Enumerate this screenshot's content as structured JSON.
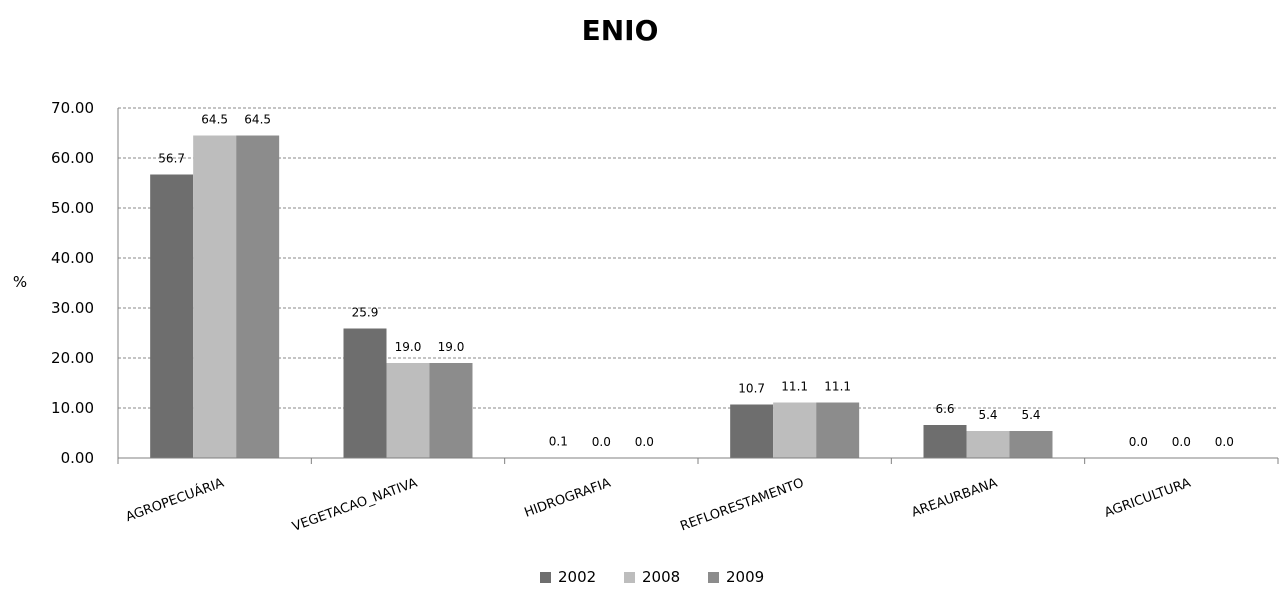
{
  "chart_data": {
    "type": "bar",
    "title": "ENIO",
    "xlabel": "",
    "ylabel": "%",
    "ylim": [
      0,
      70
    ],
    "yticks": [
      "0.00",
      "10.00",
      "20.00",
      "30.00",
      "40.00",
      "50.00",
      "60.00",
      "70.00"
    ],
    "grid": true,
    "legend_position": "bottom",
    "categories": [
      "AGROPECUÁRIA",
      "VEGETACAO_NATIVA",
      "HIDROGRAFIA",
      "REFLORESTAMENTO",
      "AREAURBANA",
      "AGRICULTURA"
    ],
    "series": [
      {
        "name": "2002",
        "color": "#6e6e6e",
        "values": [
          56.7,
          25.9,
          0.1,
          10.7,
          6.6,
          0.0
        ],
        "labels": [
          "56.7",
          "25.9",
          "0.1",
          "10.7",
          "6.6",
          "0.0"
        ]
      },
      {
        "name": "2008",
        "color": "#bdbdbd",
        "values": [
          64.5,
          19.0,
          0.0,
          11.1,
          5.4,
          0.0
        ],
        "labels": [
          "64.5",
          "19.0",
          "0.0",
          "11.1",
          "5.4",
          "0.0"
        ]
      },
      {
        "name": "2009",
        "color": "#8c8c8c",
        "values": [
          64.5,
          19.0,
          0.0,
          11.1,
          5.4,
          0.0
        ],
        "labels": [
          "64.5",
          "19.0",
          "0.0",
          "11.1",
          "5.4",
          "0.0"
        ]
      }
    ]
  }
}
